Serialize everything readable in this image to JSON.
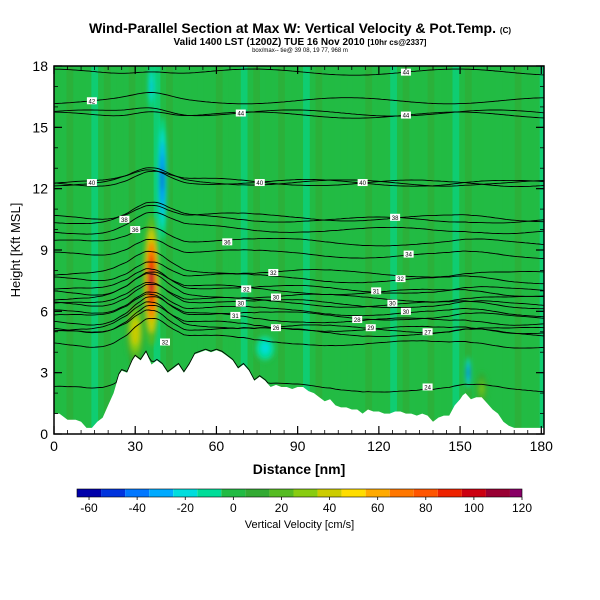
{
  "chart_data": {
    "type": "heatmap",
    "title": "Wind-Parallel Section at Max W: Vertical Velocity & Pot.Temp.",
    "title_tag": "(C)",
    "subtitle": "Valid 1400 LST (1200Z) TUE 16 Nov 2010",
    "subtitle_tag": "[10hr cs@2337]",
    "info_line": "box/max-- tie@ 39 08, 19 77, 968 m",
    "xlabel": "Distance [nm]",
    "ylabel": "Height [Kft MSL]",
    "xlim": [
      0,
      181
    ],
    "ylim": [
      0,
      18
    ],
    "xticks": [
      0,
      30,
      60,
      90,
      120,
      150,
      180
    ],
    "yticks": [
      0,
      3,
      6,
      9,
      12,
      15,
      18
    ],
    "colorbar": {
      "label": "Vertical Velocity [cm/s]",
      "ticks": [
        -60,
        -40,
        -20,
        0,
        20,
        40,
        60,
        80,
        100,
        120
      ],
      "min": -65,
      "max": 120,
      "levels": [
        -60,
        -50,
        -40,
        -30,
        -20,
        -10,
        0,
        10,
        20,
        30,
        40,
        50,
        60,
        70,
        80,
        90,
        100,
        110,
        120
      ],
      "colors": [
        "#0000aa",
        "#0033dd",
        "#0077ff",
        "#00aaff",
        "#00dddd",
        "#00dd99",
        "#22bb44",
        "#33aa33",
        "#55bb22",
        "#88cc11",
        "#cccc00",
        "#ffdd00",
        "#ffaa00",
        "#ff7700",
        "#ff5500",
        "#ee2200",
        "#cc0011",
        "#990033",
        "#880066"
      ]
    },
    "terrain_profile": {
      "distance": [
        0,
        2,
        5,
        8,
        10,
        12,
        14,
        16,
        18,
        20,
        22,
        24,
        25,
        27,
        29,
        30,
        32,
        34,
        36,
        38,
        40,
        42,
        44,
        46,
        48,
        50,
        52,
        54,
        56,
        58,
        60,
        62,
        64,
        66,
        68,
        70,
        72,
        74,
        76,
        78,
        80,
        82,
        84,
        86,
        88,
        90,
        92,
        94,
        96,
        98,
        100,
        102,
        104,
        106,
        108,
        110,
        112,
        114,
        116,
        118,
        120,
        122,
        124,
        126,
        128,
        130,
        132,
        134,
        136,
        138,
        140,
        142,
        144,
        146,
        148,
        150,
        151,
        152,
        154,
        156,
        158,
        160,
        162,
        164,
        166,
        168,
        170,
        172,
        174,
        176,
        178,
        181
      ],
      "height": [
        1.0,
        1.0,
        0.7,
        0.7,
        0.6,
        0.3,
        0.3,
        0.6,
        0.8,
        1.4,
        2.0,
        2.9,
        3.1,
        3.0,
        3.6,
        3.8,
        3.6,
        4.0,
        3.4,
        3.6,
        3.4,
        3.0,
        3.2,
        3.4,
        3.0,
        3.4,
        3.9,
        4.0,
        4.1,
        4.0,
        4.1,
        4.0,
        3.8,
        3.6,
        3.2,
        3.4,
        3.1,
        2.6,
        2.8,
        2.6,
        2.3,
        2.4,
        2.3,
        2.3,
        2.2,
        2.3,
        2.3,
        2.1,
        2.0,
        1.8,
        1.6,
        1.7,
        1.4,
        1.3,
        1.3,
        1.2,
        1.2,
        1.0,
        1.2,
        1.1,
        1.1,
        1.0,
        1.0,
        1.1,
        1.1,
        1.0,
        1.0,
        0.9,
        1.0,
        0.9,
        0.6,
        0.8,
        0.9,
        0.9,
        1.4,
        1.7,
        1.9,
        2.0,
        1.7,
        1.8,
        1.8,
        1.5,
        1.2,
        1.0,
        0.6,
        0.4,
        0.3,
        0.3,
        0.3,
        0.3,
        0.3,
        0.3
      ]
    },
    "vertical_velocity_features": [
      {
        "name": "main updraft",
        "center_distance": 36,
        "center_height": 7.5,
        "peak_cm_s": 110
      },
      {
        "name": "downdraft aloft",
        "center_distance": 40,
        "center_height": 12.5,
        "peak_cm_s": -55
      },
      {
        "name": "downdraft near tall peak",
        "center_distance": 36,
        "center_height": 17.0,
        "peak_cm_s": -25
      },
      {
        "name": "lee downdraft",
        "center_distance": 153,
        "center_height": 3.0,
        "peak_cm_s": -45
      },
      {
        "name": "low-level updraft",
        "center_distance": 30,
        "center_height": 5.0,
        "peak_cm_s": 45
      },
      {
        "name": "weak downdraft lee slope",
        "center_distance": 78,
        "center_height": 4.2,
        "peak_cm_s": -20
      },
      {
        "name": "weak updraft east",
        "center_distance": 158,
        "center_height": 2.2,
        "peak_cm_s": 30
      }
    ],
    "theta_isentrope_labels": [
      {
        "text": "42",
        "distance": 14,
        "height": 16.3
      },
      {
        "text": "40",
        "distance": 14,
        "height": 12.3
      },
      {
        "text": "38",
        "distance": 26,
        "height": 10.5
      },
      {
        "text": "36",
        "distance": 30,
        "height": 10.0
      },
      {
        "text": "32",
        "distance": 41,
        "height": 4.5
      },
      {
        "text": "44",
        "distance": 69,
        "height": 15.7
      },
      {
        "text": "40",
        "distance": 76,
        "height": 12.3
      },
      {
        "text": "36",
        "distance": 64,
        "height": 9.4
      },
      {
        "text": "32",
        "distance": 81,
        "height": 7.9
      },
      {
        "text": "32",
        "distance": 71,
        "height": 7.1
      },
      {
        "text": "30",
        "distance": 69,
        "height": 6.4
      },
      {
        "text": "30",
        "distance": 82,
        "height": 6.7
      },
      {
        "text": "31",
        "distance": 67,
        "height": 5.8
      },
      {
        "text": "26",
        "distance": 82,
        "height": 5.2
      },
      {
        "text": "44",
        "distance": 130,
        "height": 17.7
      },
      {
        "text": "44",
        "distance": 130,
        "height": 15.6
      },
      {
        "text": "40",
        "distance": 114,
        "height": 12.3
      },
      {
        "text": "38",
        "distance": 126,
        "height": 10.6
      },
      {
        "text": "34",
        "distance": 131,
        "height": 8.8
      },
      {
        "text": "32",
        "distance": 128,
        "height": 7.6
      },
      {
        "text": "31",
        "distance": 119,
        "height": 7.0
      },
      {
        "text": "30",
        "distance": 125,
        "height": 6.4
      },
      {
        "text": "30",
        "distance": 130,
        "height": 6.0
      },
      {
        "text": "28",
        "distance": 112,
        "height": 5.6
      },
      {
        "text": "29",
        "distance": 117,
        "height": 5.2
      },
      {
        "text": "27",
        "distance": 138,
        "height": 5.0
      },
      {
        "text": "24",
        "distance": 138,
        "height": 2.3
      }
    ]
  }
}
